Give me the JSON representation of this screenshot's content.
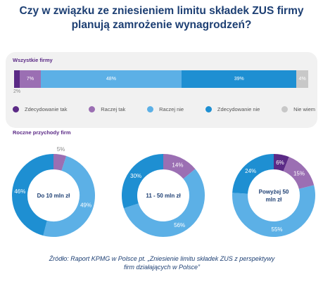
{
  "title": {
    "line1": "Czy w związku ze zniesieniem limitu składek ZUS firmy",
    "line2": "planują zamrożenie wynagrodzeń?"
  },
  "colors": {
    "title": "#1d3f73",
    "section": "#5b2a86",
    "panel": "#f1f1f1",
    "zdecydowanie_tak": "#5b2a86",
    "raczej_tak": "#9b6fb3",
    "raczej_nie": "#5cb0e6",
    "zdecydowanie_nie": "#1e8fd2",
    "nie_wiem": "#c8c8c8"
  },
  "chart_data": [
    {
      "type": "bar",
      "title": "Wszystkie firmy",
      "categories": [
        "Zdecydowanie tak",
        "Raczej tak",
        "Raczej nie",
        "Zdecydowanie nie",
        "Nie wiem"
      ],
      "values": [
        2,
        7,
        48,
        39,
        4
      ],
      "labels": [
        "2%",
        "7%",
        "48%",
        "39%",
        "4%"
      ]
    },
    {
      "type": "pie",
      "title": "Roczne przychody firm",
      "center_label": "Do 10 mln zł",
      "categories": [
        "Zdecydowanie tak",
        "Raczej tak",
        "Raczej nie",
        "Zdecydowanie nie",
        "Nie wiem"
      ],
      "values": [
        0,
        5,
        49,
        46,
        0
      ],
      "labels": [
        "",
        "5%",
        "49%",
        "46%",
        ""
      ]
    },
    {
      "type": "pie",
      "center_label": "11 - 50 mln zł",
      "categories": [
        "Zdecydowanie tak",
        "Raczej tak",
        "Raczej nie",
        "Zdecydowanie nie",
        "Nie wiem"
      ],
      "values": [
        0,
        14,
        56,
        30,
        0
      ],
      "labels": [
        "",
        "14%",
        "56%",
        "30%",
        ""
      ]
    },
    {
      "type": "pie",
      "center_label": "Powyżej 50 mln zł",
      "categories": [
        "Zdecydowanie tak",
        "Raczej tak",
        "Raczej nie",
        "Zdecydowanie nie",
        "Nie wiem"
      ],
      "values": [
        6,
        15,
        55,
        24,
        0
      ],
      "labels": [
        "6%",
        "15%",
        "55%",
        "24%",
        ""
      ]
    }
  ],
  "legend": [
    {
      "label": "Zdecydowanie tak",
      "color": "#5b2a86"
    },
    {
      "label": "Raczej tak",
      "color": "#9b6fb3"
    },
    {
      "label": "Raczej nie",
      "color": "#5cb0e6"
    },
    {
      "label": "Zdecydowanie nie",
      "color": "#1e8fd2"
    },
    {
      "label": "Nie wiem",
      "color": "#c8c8c8"
    }
  ],
  "source": {
    "line1": "Źródło: Raport KPMG w Polsce pt. „Zniesienie limitu składek ZUS z perspektywy",
    "line2": "firm działających w Polsce”"
  }
}
